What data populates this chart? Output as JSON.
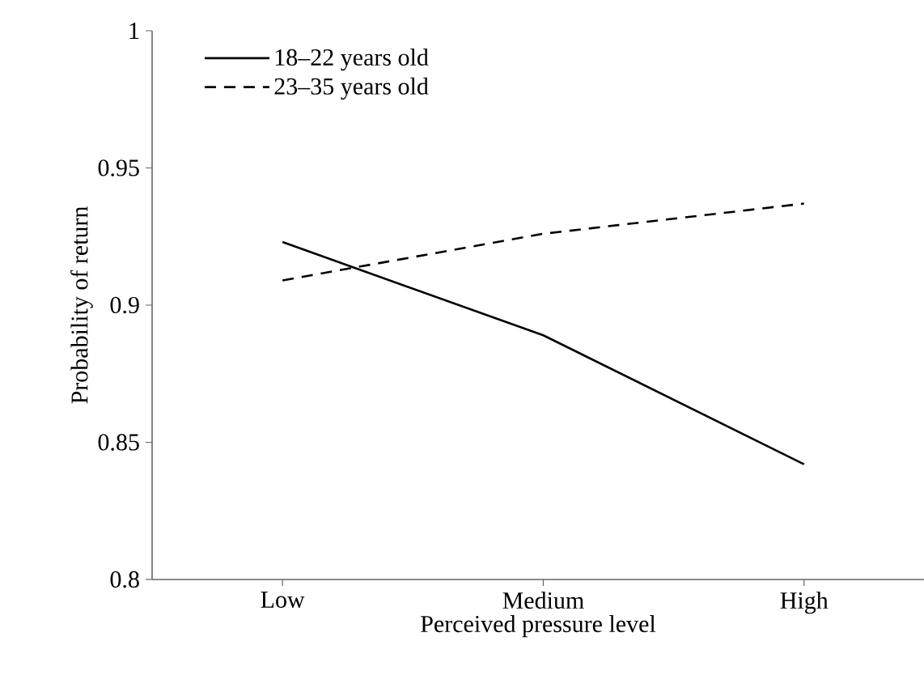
{
  "chart_data": {
    "type": "line",
    "xlabel": "Perceived pressure level",
    "ylabel": "Probability of return",
    "categories": [
      "Low",
      "Medium",
      "High"
    ],
    "series": [
      {
        "name": "18–22 years old",
        "color": "#000000",
        "line_style": "solid",
        "values": [
          0.923,
          0.889,
          0.842
        ]
      },
      {
        "name": "23–35 years old",
        "color": "#000000",
        "line_style": "dashed",
        "values": [
          0.909,
          0.926,
          0.937
        ]
      }
    ],
    "ylim": [
      0.8,
      1
    ],
    "yticks": [
      0.8,
      0.85,
      0.9,
      0.95,
      1
    ],
    "grid": false,
    "legend": "top left",
    "marker": "none"
  }
}
